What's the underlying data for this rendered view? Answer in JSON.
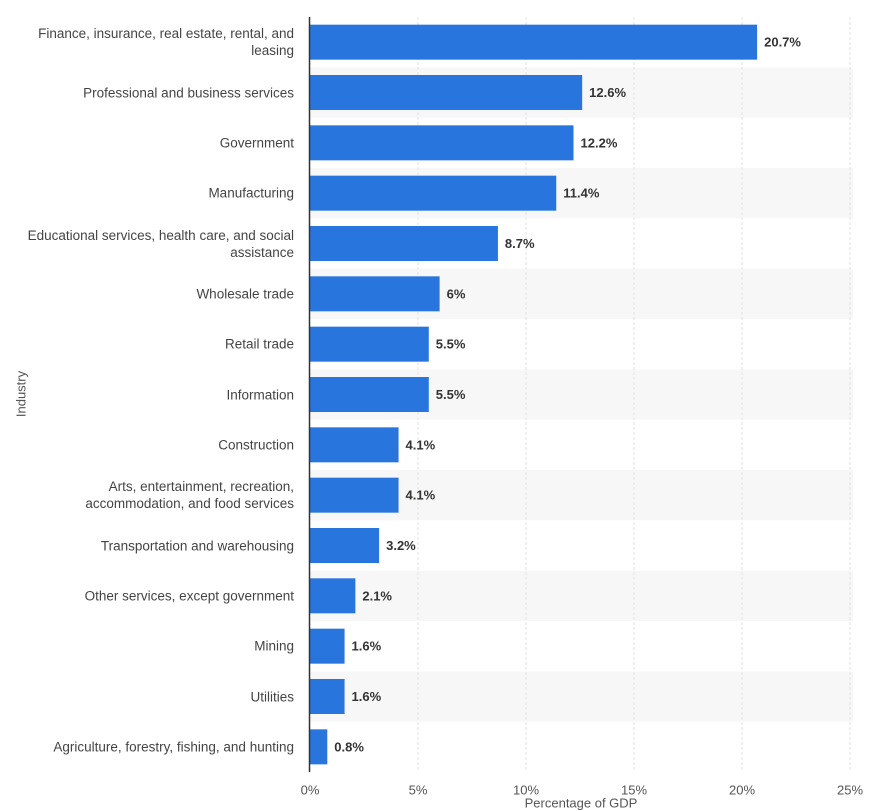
{
  "chart_data": {
    "type": "bar",
    "orientation": "horizontal",
    "x_label": "Percentage of GDP",
    "y_label": "Industry",
    "categories": [
      "Finance, insurance, real estate, rental, and leasing",
      "Professional and business services",
      "Government",
      "Manufacturing",
      "Educational services, health care, and social assistance",
      "Wholesale trade",
      "Retail trade",
      "Information",
      "Construction",
      "Arts, entertainment, recreation, accommodation, and food services",
      "Transportation and warehousing",
      "Other services, except government",
      "Mining",
      "Utilities",
      "Agriculture, forestry, fishing, and hunting"
    ],
    "values": [
      20.7,
      12.6,
      12.2,
      11.4,
      8.7,
      6,
      5.5,
      5.5,
      4.1,
      4.1,
      3.2,
      2.1,
      1.6,
      1.6,
      0.8
    ],
    "value_labels": [
      "20.7%",
      "12.6%",
      "12.2%",
      "11.4%",
      "8.7%",
      "6%",
      "5.5%",
      "5.5%",
      "4.1%",
      "4.1%",
      "3.2%",
      "2.1%",
      "1.6%",
      "1.6%",
      "0.8%"
    ],
    "color": "#2876dd",
    "xlim": [
      0,
      25
    ],
    "xticks": [
      {
        "value": 0,
        "label": "0%"
      },
      {
        "value": 5,
        "label": "5%"
      },
      {
        "value": 10,
        "label": "10%"
      },
      {
        "value": 15,
        "label": "15%"
      },
      {
        "value": 20,
        "label": "20%"
      },
      {
        "value": 25,
        "label": "25%"
      }
    ],
    "grid": true
  }
}
